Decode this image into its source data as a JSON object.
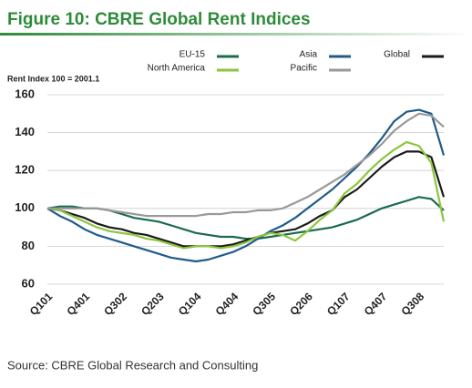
{
  "chart_data": {
    "type": "line",
    "title": "Figure 10: CBRE Global Rent Indices",
    "ylabel": "Rent Index 100 = 2001.1",
    "source": "Source: CBRE Global Research and Consulting",
    "categories": [
      "Q101",
      null,
      null,
      "Q401",
      null,
      null,
      "Q302",
      null,
      null,
      "Q203",
      null,
      null,
      "Q104",
      null,
      null,
      "Q404",
      null,
      null,
      "Q305",
      null,
      null,
      "Q206",
      null,
      null,
      "Q107",
      null,
      null,
      "Q407",
      null,
      null,
      "Q308",
      null,
      null
    ],
    "ylim": [
      60,
      160
    ],
    "yticks": [
      60,
      80,
      100,
      120,
      140,
      160
    ],
    "grid": true,
    "series": [
      {
        "name": "EU-15",
        "color": "#1a6b4a",
        "values": [
          100,
          101,
          101,
          100,
          100,
          99,
          97,
          95,
          94,
          93,
          91,
          89,
          87,
          86,
          85,
          85,
          84,
          84,
          85,
          86,
          87,
          88,
          89,
          90,
          92,
          94,
          97,
          100,
          102,
          104,
          106,
          105,
          99
        ]
      },
      {
        "name": "Asia",
        "color": "#1f5b8a",
        "values": [
          100,
          96,
          93,
          89,
          86,
          84,
          82,
          80,
          78,
          76,
          74,
          73,
          72,
          73,
          75,
          77,
          80,
          84,
          88,
          91,
          95,
          100,
          105,
          110,
          116,
          122,
          129,
          137,
          146,
          151,
          152,
          150,
          128
        ]
      },
      {
        "name": "Global",
        "color": "#1a1a1a",
        "values": [
          100,
          99,
          97,
          95,
          92,
          90,
          89,
          87,
          86,
          84,
          82,
          80,
          80,
          80,
          80,
          81,
          83,
          85,
          87,
          88,
          89,
          92,
          96,
          99,
          106,
          110,
          116,
          122,
          127,
          130,
          130,
          127,
          106
        ]
      },
      {
        "name": "North America",
        "color": "#8cc63f",
        "values": [
          100,
          99,
          96,
          93,
          90,
          88,
          87,
          86,
          84,
          83,
          81,
          79,
          80,
          80,
          79,
          80,
          82,
          85,
          87,
          86,
          83,
          88,
          94,
          99,
          108,
          113,
          120,
          126,
          131,
          135,
          133,
          124,
          93
        ]
      },
      {
        "name": "Pacific",
        "color": "#999999",
        "values": [
          100,
          100,
          100,
          100,
          100,
          99,
          98,
          97,
          96,
          96,
          96,
          96,
          96,
          97,
          97,
          98,
          98,
          99,
          99,
          100,
          103,
          106,
          110,
          114,
          118,
          123,
          128,
          134,
          141,
          146,
          150,
          149,
          143
        ]
      }
    ]
  }
}
